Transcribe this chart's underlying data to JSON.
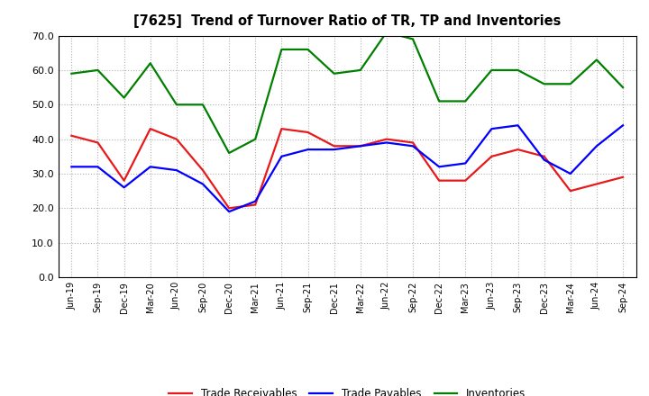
{
  "title": "[7625]  Trend of Turnover Ratio of TR, TP and Inventories",
  "x_labels": [
    "Jun-19",
    "Sep-19",
    "Dec-19",
    "Mar-20",
    "Jun-20",
    "Sep-20",
    "Dec-20",
    "Mar-21",
    "Jun-21",
    "Sep-21",
    "Dec-21",
    "Mar-22",
    "Jun-22",
    "Sep-22",
    "Dec-22",
    "Mar-23",
    "Jun-23",
    "Sep-23",
    "Dec-23",
    "Mar-24",
    "Jun-24",
    "Sep-24"
  ],
  "trade_receivables": [
    41.0,
    39.0,
    28.0,
    43.0,
    40.0,
    31.0,
    20.0,
    21.0,
    43.0,
    42.0,
    38.0,
    38.0,
    40.0,
    39.0,
    28.0,
    28.0,
    35.0,
    37.0,
    35.0,
    25.0,
    27.0,
    29.0
  ],
  "trade_payables": [
    32.0,
    32.0,
    26.0,
    32.0,
    31.0,
    27.0,
    19.0,
    22.0,
    35.0,
    37.0,
    37.0,
    38.0,
    39.0,
    38.0,
    32.0,
    33.0,
    43.0,
    44.0,
    34.0,
    30.0,
    38.0,
    44.0
  ],
  "inventories": [
    59.0,
    60.0,
    52.0,
    62.0,
    50.0,
    50.0,
    36.0,
    40.0,
    66.0,
    66.0,
    59.0,
    60.0,
    71.0,
    69.0,
    51.0,
    51.0,
    60.0,
    60.0,
    56.0,
    56.0,
    63.0,
    55.0
  ],
  "tr_color": "#e8191a",
  "tp_color": "#0000ff",
  "inv_color": "#008000",
  "ylim": [
    0,
    70
  ],
  "yticks": [
    0.0,
    10.0,
    20.0,
    30.0,
    40.0,
    50.0,
    60.0,
    70.0
  ],
  "legend_labels": [
    "Trade Receivables",
    "Trade Payables",
    "Inventories"
  ],
  "background_color": "#ffffff",
  "grid_color": "#b0b0b0"
}
